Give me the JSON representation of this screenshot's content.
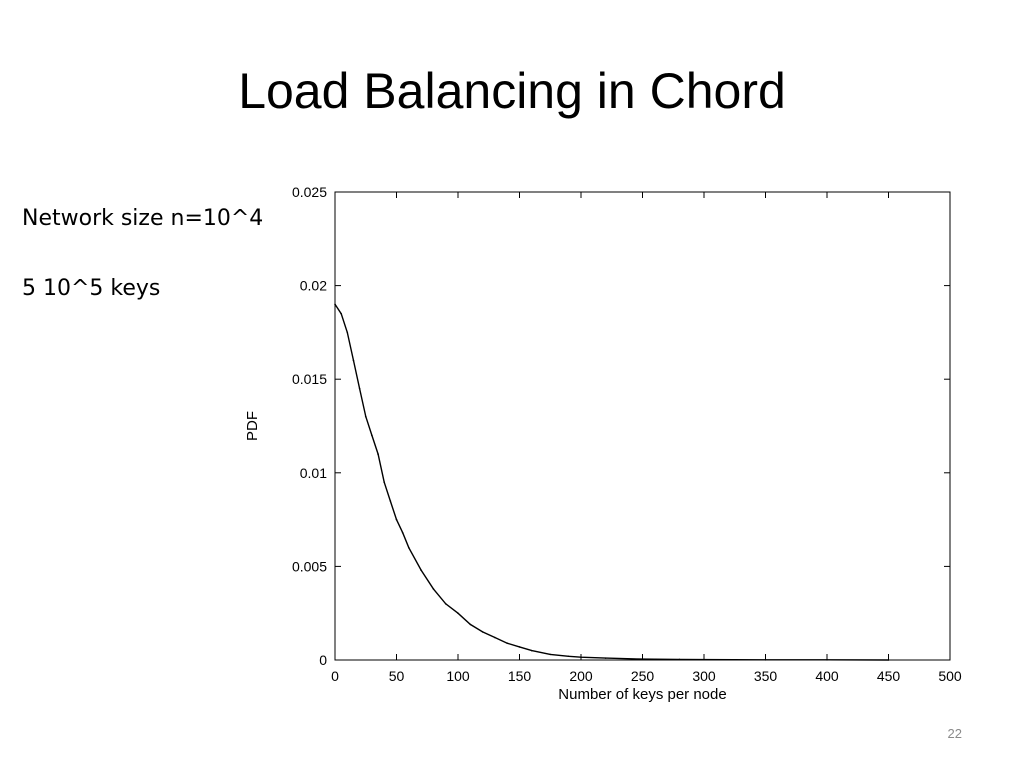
{
  "slide": {
    "title": "Load Balancing in Chord",
    "notes": [
      "Network size n=10^4",
      "5 10^5 keys"
    ],
    "page_number": "22"
  },
  "chart_data": {
    "type": "line",
    "xlabel": "Number of keys per node",
    "ylabel": "PDF",
    "xlim": [
      0,
      500
    ],
    "ylim": [
      0,
      0.025
    ],
    "x_ticks": [
      0,
      50,
      100,
      150,
      200,
      250,
      300,
      350,
      400,
      450,
      500
    ],
    "y_ticks": [
      0,
      0.005,
      0.01,
      0.015,
      0.02,
      0.025
    ],
    "x_tick_labels": [
      "0",
      "50",
      "100",
      "150",
      "200",
      "250",
      "300",
      "350",
      "400",
      "450",
      "500"
    ],
    "y_tick_labels": [
      "0",
      "0.005",
      "0.01",
      "0.015",
      "0.02",
      "0.025"
    ],
    "grid": false,
    "series": [
      {
        "color": "#000000",
        "x": [
          0,
          5,
          10,
          15,
          20,
          25,
          30,
          35,
          40,
          45,
          50,
          55,
          60,
          70,
          80,
          90,
          100,
          110,
          120,
          130,
          140,
          150,
          160,
          175,
          190,
          200,
          220,
          250,
          280,
          300,
          350,
          400,
          450
        ],
        "y": [
          0.019,
          0.0185,
          0.0175,
          0.016,
          0.0145,
          0.013,
          0.012,
          0.011,
          0.0095,
          0.0085,
          0.0075,
          0.0068,
          0.006,
          0.0048,
          0.0038,
          0.003,
          0.0025,
          0.0019,
          0.0015,
          0.0012,
          0.0009,
          0.0007,
          0.0005,
          0.0003,
          0.0002,
          0.00015,
          0.0001,
          5e-05,
          3e-05,
          2e-05,
          1e-05,
          1e-05,
          0.0
        ]
      }
    ]
  }
}
